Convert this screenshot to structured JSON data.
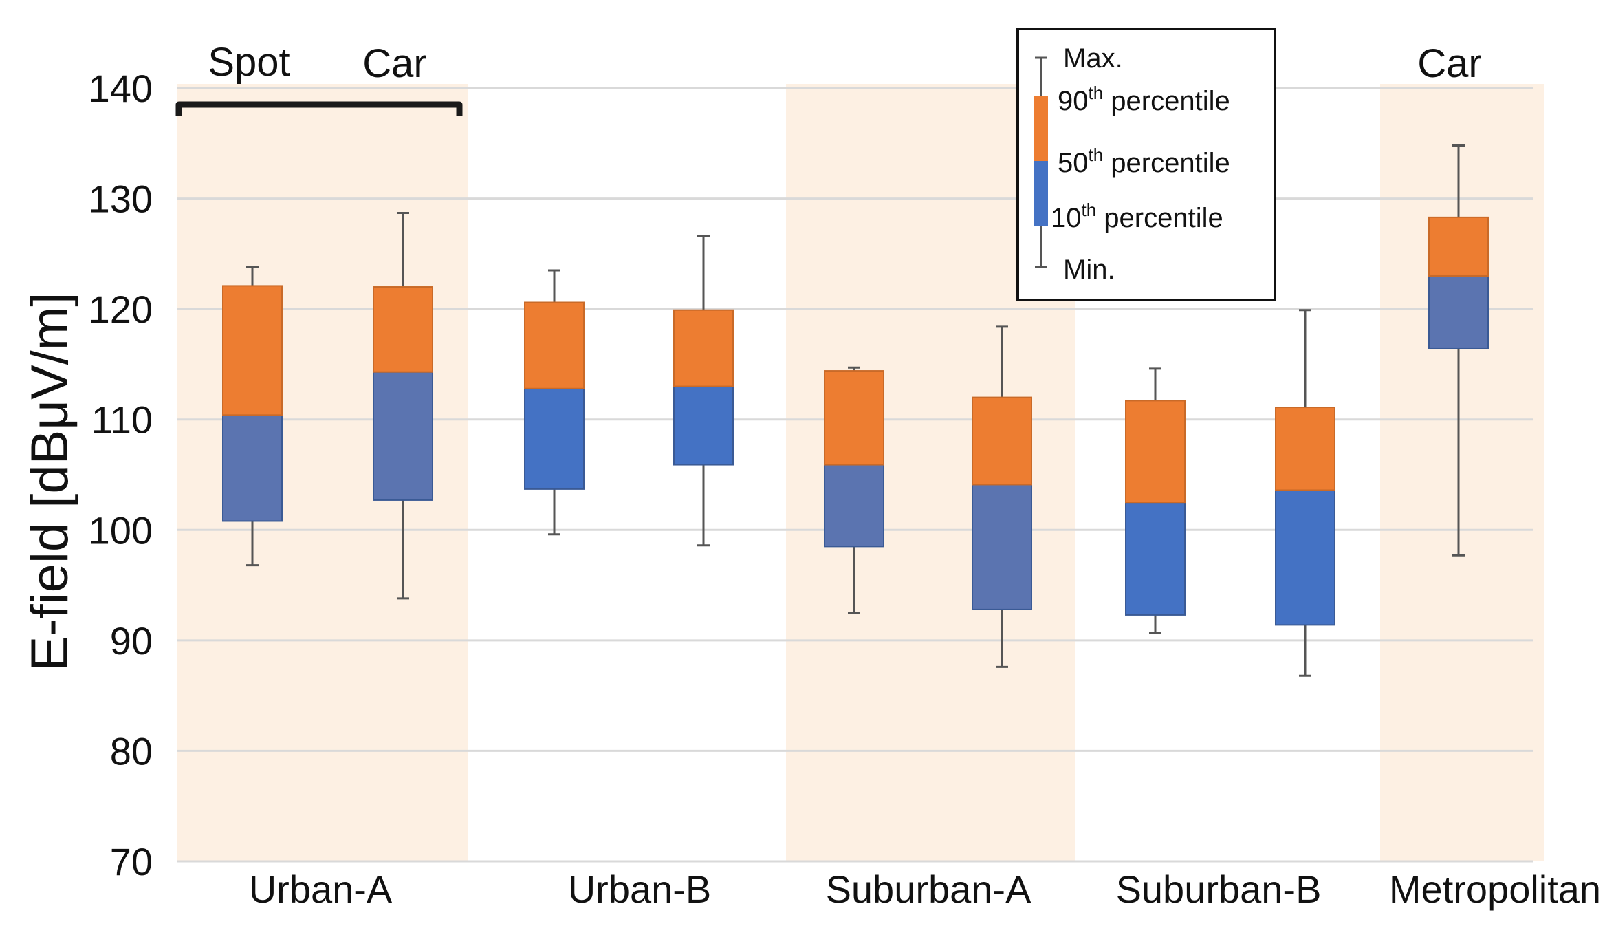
{
  "chart_data": {
    "type": "box",
    "title": "",
    "ylabel": "E-field [dBμV/m]",
    "xlabel": "",
    "ylim": [
      70,
      140
    ],
    "yticks": [
      70,
      80,
      90,
      100,
      110,
      120,
      130,
      140
    ],
    "grid": true,
    "categories": [
      "Urban-A",
      "Urban-B",
      "Suburban-A",
      "Suburban-B",
      "Metropolitan"
    ],
    "shaded_categories": [
      "Urban-A",
      "Suburban-A",
      "Metropolitan"
    ],
    "group_notes": [
      {
        "text": "Spot",
        "category": "Urban-A"
      },
      {
        "text": "Car",
        "category": "Urban-A"
      },
      {
        "text": "Car",
        "category": "Metropolitan"
      }
    ],
    "boxes": [
      {
        "category": "Urban-A",
        "kind": "Spot",
        "min": 96.8,
        "p10": 100.8,
        "p50": 110.4,
        "p90": 122.1,
        "max": 123.8
      },
      {
        "category": "Urban-A",
        "kind": "Car",
        "min": 93.8,
        "p10": 102.7,
        "p50": 114.3,
        "p90": 122.0,
        "max": 128.7
      },
      {
        "category": "Urban-B",
        "kind": "Spot",
        "min": 99.6,
        "p10": 103.7,
        "p50": 112.8,
        "p90": 120.6,
        "max": 123.5
      },
      {
        "category": "Urban-B",
        "kind": "Car",
        "min": 98.6,
        "p10": 105.9,
        "p50": 113.0,
        "p90": 119.9,
        "max": 126.6
      },
      {
        "category": "Suburban-A",
        "kind": "Spot",
        "min": 92.5,
        "p10": 98.5,
        "p50": 105.9,
        "p90": 114.4,
        "max": 114.7
      },
      {
        "category": "Suburban-A",
        "kind": "Car",
        "min": 87.6,
        "p10": 92.8,
        "p50": 104.1,
        "p90": 112.0,
        "max": 118.4
      },
      {
        "category": "Suburban-B",
        "kind": "Spot",
        "min": 90.7,
        "p10": 92.3,
        "p50": 102.5,
        "p90": 111.7,
        "max": 114.6
      },
      {
        "category": "Suburban-B",
        "kind": "Car",
        "min": 86.8,
        "p10": 91.4,
        "p50": 103.6,
        "p90": 111.1,
        "max": 119.9
      },
      {
        "category": "Metropolitan",
        "kind": "Car",
        "min": 97.7,
        "p10": 116.4,
        "p50": 123.0,
        "p90": 128.3,
        "max": 134.8
      }
    ],
    "legend": {
      "position": "top-center",
      "items": [
        {
          "label": "Max.",
          "sup": ""
        },
        {
          "label": "90",
          "sup": "th",
          "suffix": " percentile"
        },
        {
          "label": "50",
          "sup": "th",
          "suffix": " percentile"
        },
        {
          "label": "10",
          "sup": "th",
          "suffix": " percentile"
        },
        {
          "label": "Min.",
          "sup": ""
        }
      ]
    },
    "colors": {
      "upper_box": "#ED7D31",
      "lower_box": "#4472C4",
      "lower_box_alt": "#5B74B0",
      "whisker": "#555555",
      "shading": "#FDF0E3",
      "grid": "#D9D9D9",
      "bracket": "#1A1A1A"
    }
  }
}
